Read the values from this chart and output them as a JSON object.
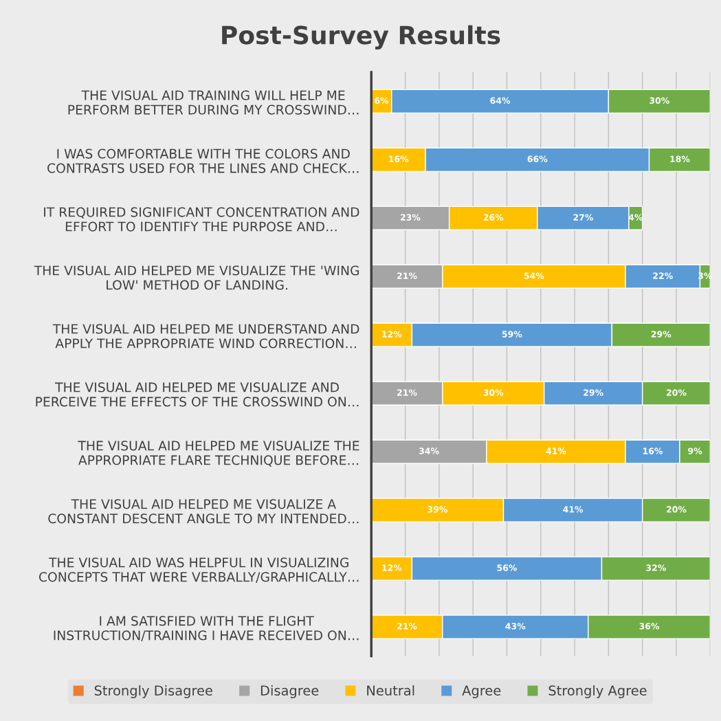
{
  "chart_data": {
    "type": "bar",
    "orientation": "horizontal",
    "stacked": true,
    "title": "Post-Survey Results",
    "categories": [
      "THE VISUAL AID TRAINING WILL HELP ME\nPERFORM BETTER DURING MY CROSSWIND…",
      "I WAS COMFORTABLE WITH THE COLORS AND\nCONTRASTS USED FOR THE LINES AND CHECK…",
      "IT REQUIRED SIGNIFICANT CONCENTRATION AND\nEFFORT TO IDENTIFY THE PURPOSE AND…",
      "THE VISUAL AID HELPED ME VISUALIZE THE 'WING\nLOW' METHOD OF LANDING.",
      "THE VISUAL AID HELPED ME UNDERSTAND AND\nAPPLY THE APPROPRIATE WIND CORRECTION…",
      "THE VISUAL AID HELPED ME VISUALIZE AND\nPERCEIVE THE EFFECTS OF THE CROSSWIND ON…",
      "THE VISUAL AID HELPED ME VISUALIZE THE\nAPPROPRIATE FLARE TECHNIQUE BEFORE…",
      "THE VISUAL AID HELPED ME VISUALIZE A\nCONSTANT DESCENT ANGLE TO MY INTENDED…",
      "THE VISUAL AID WAS HELPFUL IN VISUALIZING\nCONCEPTS THAT WERE VERBALLY/GRAPHICALLY…",
      "I AM SATISFIED WITH THE FLIGHT\nINSTRUCTION/TRAINING I HAVE RECEIVED ON…"
    ],
    "series": [
      {
        "name": "Strongly Disagree",
        "color": "#ed7d31",
        "values": [
          null,
          null,
          null,
          null,
          null,
          null,
          null,
          null,
          null,
          null
        ],
        "value_labels": [
          null,
          null,
          null,
          null,
          null,
          null,
          null,
          null,
          null,
          null
        ]
      },
      {
        "name": "Disagree",
        "color": "#a5a5a5",
        "values": [
          null,
          null,
          23,
          21,
          null,
          21,
          34,
          null,
          null,
          null
        ],
        "value_labels": [
          null,
          null,
          "23%",
          "21%",
          null,
          "21%",
          "34%",
          null,
          null,
          null
        ]
      },
      {
        "name": "Neutral",
        "color": "#ffc000",
        "values": [
          6,
          16,
          26,
          54,
          12,
          30,
          41,
          39,
          12,
          21
        ],
        "value_labels": [
          "6%",
          "16%",
          "26%",
          "54%",
          "12%",
          "30%",
          "41%",
          "39%",
          "12%",
          "21%"
        ]
      },
      {
        "name": "Agree",
        "color": "#5b9bd5",
        "values": [
          64,
          66,
          27,
          22,
          59,
          29,
          16,
          41,
          56,
          43
        ],
        "value_labels": [
          "64%",
          "66%",
          "27%",
          "22%",
          "59%",
          "29%",
          "16%",
          "41%",
          "56%",
          "43%"
        ]
      },
      {
        "name": "Strongly Agree",
        "color": "#70ad47",
        "values": [
          30,
          18,
          4,
          3,
          29,
          20,
          9,
          20,
          32,
          36
        ],
        "value_labels": [
          "30%",
          "18%",
          "4%",
          "3%",
          "29%",
          "20%",
          "9%",
          "20%",
          "32%",
          "36%"
        ]
      }
    ],
    "xlim": [
      0,
      100
    ],
    "xticks": [
      {
        "value": 0,
        "label": null
      },
      {
        "value": 10,
        "label": null
      },
      {
        "value": 20,
        "label": null
      },
      {
        "value": 30,
        "label": null
      },
      {
        "value": 40,
        "label": null
      },
      {
        "value": 50,
        "label": null
      },
      {
        "value": 60,
        "label": null
      },
      {
        "value": 70,
        "label": null
      },
      {
        "value": 80,
        "label": null
      },
      {
        "value": 90,
        "label": null
      },
      {
        "value": 100,
        "label": null
      }
    ],
    "tick_labels": "y",
    "grid": "x",
    "legend": "bottom"
  }
}
